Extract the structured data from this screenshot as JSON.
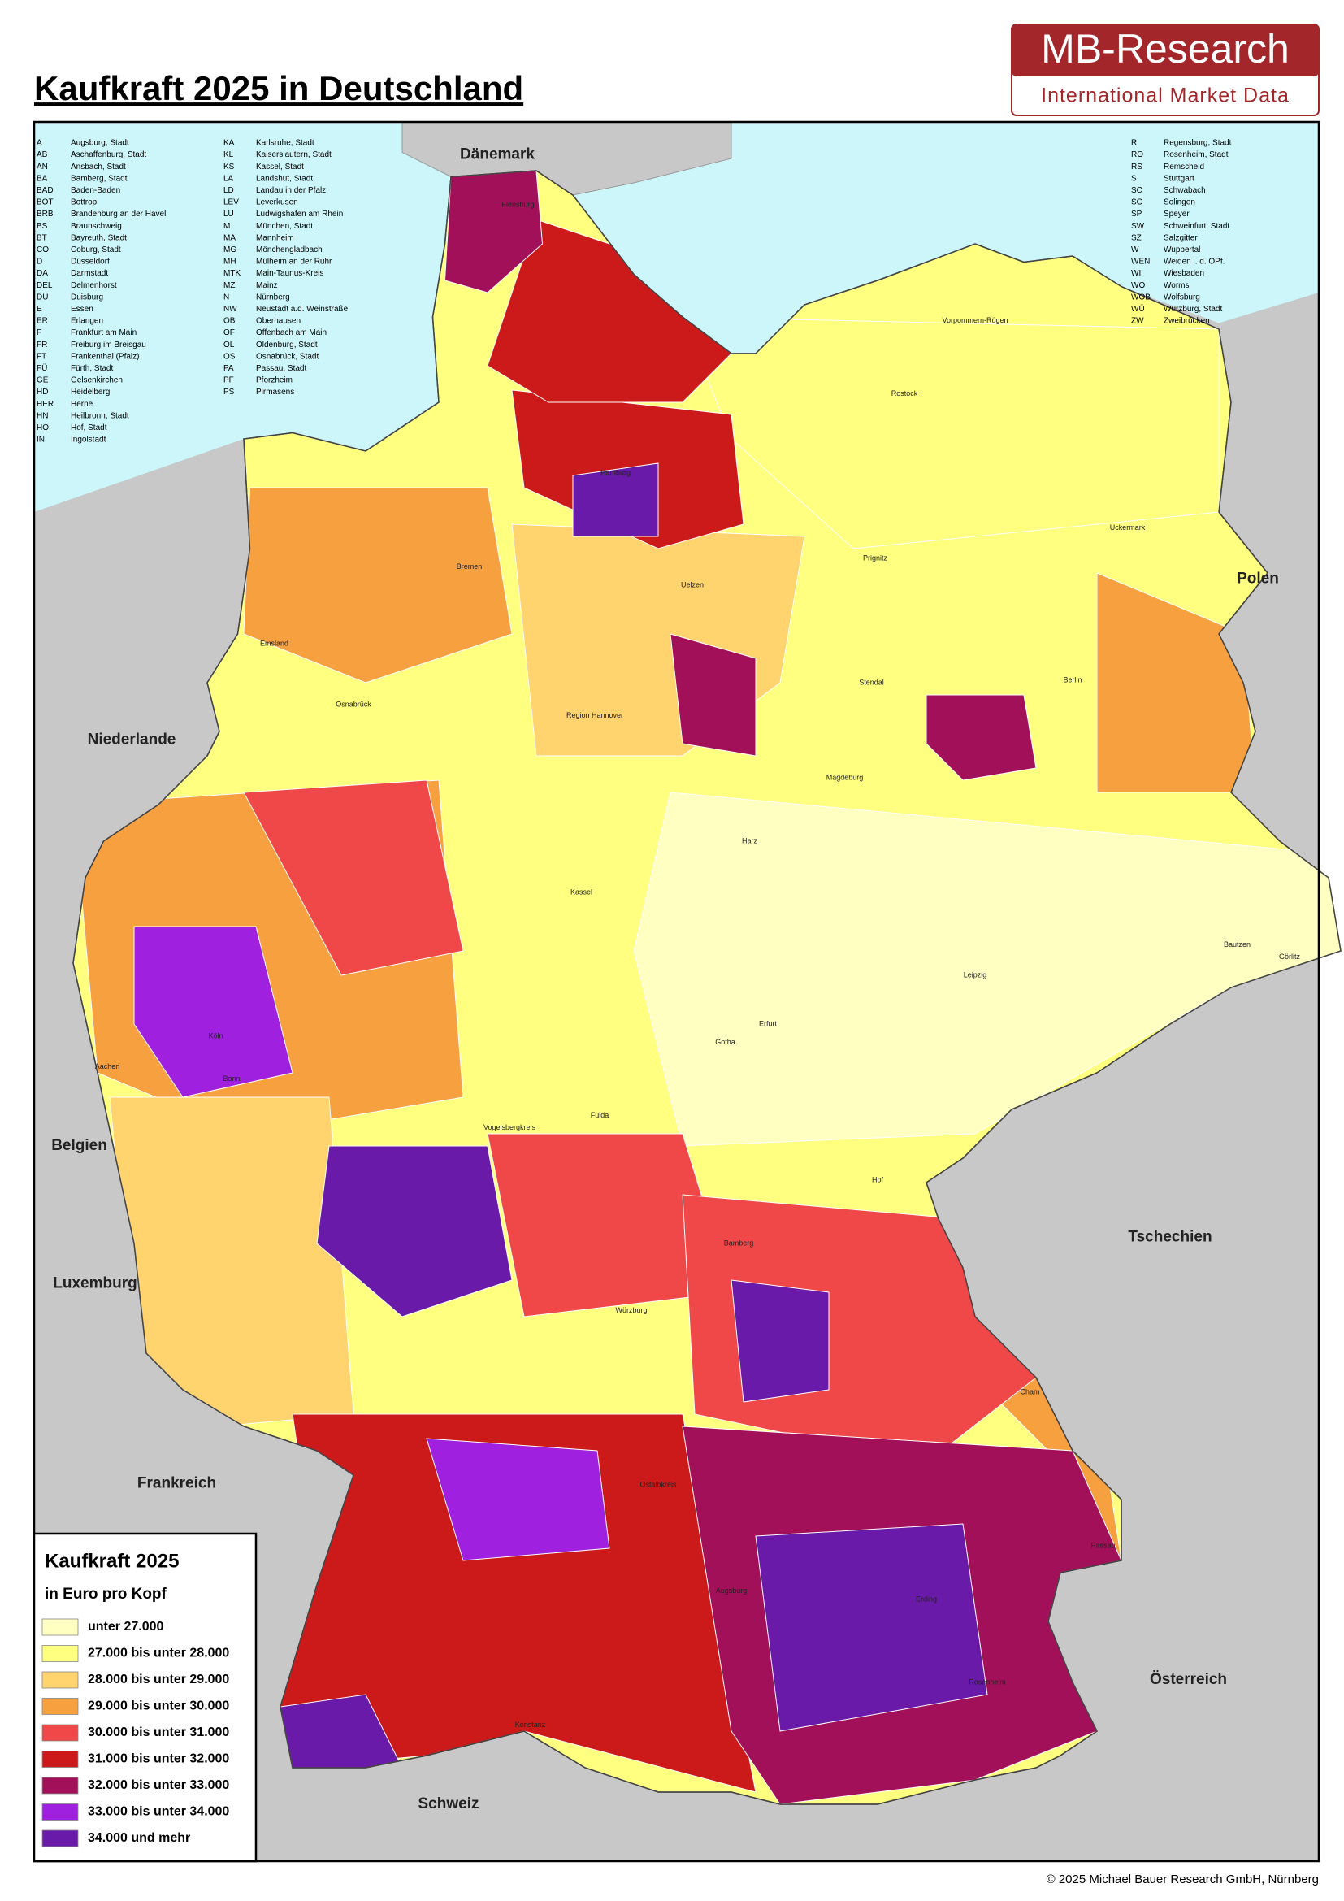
{
  "header": {
    "title": "Kaufkraft 2025 in Deutschland",
    "logo_name": "MB-Research",
    "logo_tagline": "International Market Data"
  },
  "abbreviations": [
    [
      [
        "A",
        "Augsburg, Stadt"
      ],
      [
        "AB",
        "Aschaffenburg, Stadt"
      ],
      [
        "AN",
        "Ansbach, Stadt"
      ],
      [
        "BA",
        "Bamberg, Stadt"
      ],
      [
        "BAD",
        "Baden-Baden"
      ],
      [
        "BOT",
        "Bottrop"
      ],
      [
        "BRB",
        "Brandenburg an der Havel"
      ],
      [
        "BS",
        "Braunschweig"
      ],
      [
        "BT",
        "Bayreuth, Stadt"
      ],
      [
        "CO",
        "Coburg, Stadt"
      ],
      [
        "D",
        "Düsseldorf"
      ],
      [
        "DA",
        "Darmstadt"
      ],
      [
        "DEL",
        "Delmenhorst"
      ],
      [
        "DU",
        "Duisburg"
      ],
      [
        "E",
        "Essen"
      ],
      [
        "ER",
        "Erlangen"
      ],
      [
        "F",
        "Frankfurt am Main"
      ],
      [
        "FR",
        "Freiburg im Breisgau"
      ],
      [
        "FT",
        "Frankenthal (Pfalz)"
      ],
      [
        "FÜ",
        "Fürth, Stadt"
      ],
      [
        "GE",
        "Gelsenkirchen"
      ],
      [
        "HD",
        "Heidelberg"
      ],
      [
        "HER",
        "Herne"
      ],
      [
        "HN",
        "Heilbronn, Stadt"
      ],
      [
        "HO",
        "Hof, Stadt"
      ],
      [
        "IN",
        "Ingolstadt"
      ]
    ],
    [
      [
        "KA",
        "Karlsruhe, Stadt"
      ],
      [
        "KL",
        "Kaiserslautern, Stadt"
      ],
      [
        "KS",
        "Kassel, Stadt"
      ],
      [
        "LA",
        "Landshut, Stadt"
      ],
      [
        "LD",
        "Landau in der Pfalz"
      ],
      [
        "LEV",
        "Leverkusen"
      ],
      [
        "LU",
        "Ludwigshafen am Rhein"
      ],
      [
        "M",
        "München, Stadt"
      ],
      [
        "MA",
        "Mannheim"
      ],
      [
        "MG",
        "Mönchengladbach"
      ],
      [
        "MH",
        "Mülheim an der Ruhr"
      ],
      [
        "MTK",
        "Main-Taunus-Kreis"
      ],
      [
        "MZ",
        "Mainz"
      ],
      [
        "N",
        "Nürnberg"
      ],
      [
        "NW",
        "Neustadt a.d. Weinstraße"
      ],
      [
        "OB",
        "Oberhausen"
      ],
      [
        "OF",
        "Offenbach am Main"
      ],
      [
        "OL",
        "Oldenburg, Stadt"
      ],
      [
        "OS",
        "Osnabrück, Stadt"
      ],
      [
        "PA",
        "Passau, Stadt"
      ],
      [
        "PF",
        "Pforzheim"
      ],
      [
        "PS",
        "Pirmasens"
      ]
    ],
    [
      [
        "R",
        "Regensburg, Stadt"
      ],
      [
        "RO",
        "Rosenheim, Stadt"
      ],
      [
        "RS",
        "Remscheid"
      ],
      [
        "S",
        "Stuttgart"
      ],
      [
        "SC",
        "Schwabach"
      ],
      [
        "SG",
        "Solingen"
      ],
      [
        "SP",
        "Speyer"
      ],
      [
        "SW",
        "Schweinfurt, Stadt"
      ],
      [
        "SZ",
        "Salzgitter"
      ],
      [
        "W",
        "Wuppertal"
      ],
      [
        "WEN",
        "Weiden i. d. OPf."
      ],
      [
        "WI",
        "Wiesbaden"
      ],
      [
        "WO",
        "Worms"
      ],
      [
        "WOB",
        "Wolfsburg"
      ],
      [
        "WÜ",
        "Würzburg, Stadt"
      ],
      [
        "ZW",
        "Zweibrücken"
      ]
    ]
  ],
  "countries": [
    "Dänemark",
    "Polen",
    "Niederlande",
    "Belgien",
    "Luxemburg",
    "Frankreich",
    "Schweiz",
    "Österreich",
    "Tschechien"
  ],
  "places": [
    "Flensburg",
    "Vorpommern-Rügen",
    "Rostock",
    "Uckermark",
    "Berlin",
    "Hamburg",
    "Bremen",
    "Emsland",
    "Osnabrück",
    "Region Hannover",
    "Magdeburg",
    "Harz",
    "Leipzig",
    "Bautzen",
    "Görlitz",
    "Erfurt",
    "Gotha",
    "Köln",
    "Bonn",
    "Aachen",
    "Kassel",
    "Fulda",
    "Würzburg",
    "Bamberg",
    "Hof",
    "Cham",
    "Passau",
    "Augsburg",
    "Erding",
    "Rosenheim",
    "Konstanz",
    "Stendal",
    "Prignitz",
    "Vogelsbergkreis",
    "Ostalbkreis",
    "Uelzen"
  ],
  "legend": {
    "title": "Kaufkraft 2025",
    "subtitle": "in Euro pro Kopf",
    "items": [
      {
        "label": "unter 27.000",
        "color": "#ffffc2"
      },
      {
        "label": "27.000 bis unter 28.000",
        "color": "#ffff80"
      },
      {
        "label": "28.000 bis unter 29.000",
        "color": "#ffd36e"
      },
      {
        "label": "29.000 bis unter 30.000",
        "color": "#f7a040"
      },
      {
        "label": "30.000 bis unter 31.000",
        "color": "#f04848"
      },
      {
        "label": "31.000 bis unter 32.000",
        "color": "#cc1a1a"
      },
      {
        "label": "32.000 bis unter 33.000",
        "color": "#a3105a"
      },
      {
        "label": "33.000 bis unter 34.000",
        "color": "#a020e0"
      },
      {
        "label": "34.000 und mehr",
        "color": "#6a1aa8"
      }
    ]
  },
  "footer": "© 2025 Michael Bauer Research GmbH, Nürnberg"
}
